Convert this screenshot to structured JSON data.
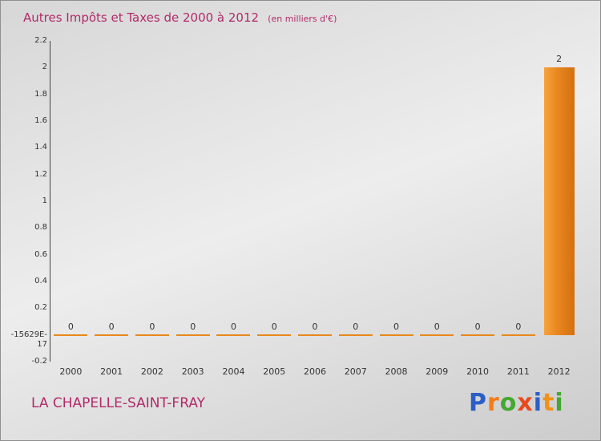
{
  "title": "Autres Impôts et Taxes de 2000 à 2012",
  "subtitle": "(en milliers d'€)",
  "footer": {
    "commune": "LA CHAPELLE-SAINT-FRAY"
  },
  "logo": {
    "name": "Proxiti",
    "letters": [
      {
        "ch": "P",
        "color": "#2b5fc7"
      },
      {
        "ch": "r",
        "color": "#f07d1a"
      },
      {
        "ch": "o",
        "color": "#44a832"
      },
      {
        "ch": "x",
        "color": "#e8491d"
      },
      {
        "ch": "i",
        "color": "#2b5fc7"
      },
      {
        "ch": "t",
        "color": "#f0921a"
      },
      {
        "ch": "i",
        "color": "#44a832"
      }
    ]
  },
  "chart_data": {
    "type": "bar",
    "title": "Autres Impôts et Taxes de 2000 à 2012 (en milliers d'€)",
    "categories": [
      "2000",
      "2001",
      "2002",
      "2003",
      "2004",
      "2005",
      "2006",
      "2007",
      "2008",
      "2009",
      "2010",
      "2011",
      "2012"
    ],
    "values": [
      0,
      0,
      0,
      0,
      0,
      0,
      0,
      0,
      0,
      0,
      0,
      0,
      2
    ],
    "value_labels": [
      "0",
      "0",
      "0",
      "0",
      "0",
      "0",
      "0",
      "0",
      "0",
      "0",
      "0",
      "0",
      "2"
    ],
    "xlabel": "",
    "ylabel": "",
    "ylim": [
      -0.2,
      2.2
    ],
    "yticks": [
      {
        "value": 2.2,
        "label": "2.2"
      },
      {
        "value": 2.0,
        "label": "2"
      },
      {
        "value": 1.8,
        "label": "1.8"
      },
      {
        "value": 1.6,
        "label": "1.6"
      },
      {
        "value": 1.4,
        "label": "1.4"
      },
      {
        "value": 1.2,
        "label": "1.2"
      },
      {
        "value": 1.0,
        "label": "1"
      },
      {
        "value": 0.8,
        "label": "0.8"
      },
      {
        "value": 0.6,
        "label": "0.6"
      },
      {
        "value": 0.4,
        "label": "0.4"
      },
      {
        "value": 0.2,
        "label": "0.2"
      },
      {
        "value": 0.0,
        "label": "-15629E-17"
      },
      {
        "value": -0.2,
        "label": "-0.2"
      }
    ],
    "grid": false,
    "legend": false,
    "bar_color": "#e8861f",
    "zero_marker_color": "#e8891c"
  }
}
